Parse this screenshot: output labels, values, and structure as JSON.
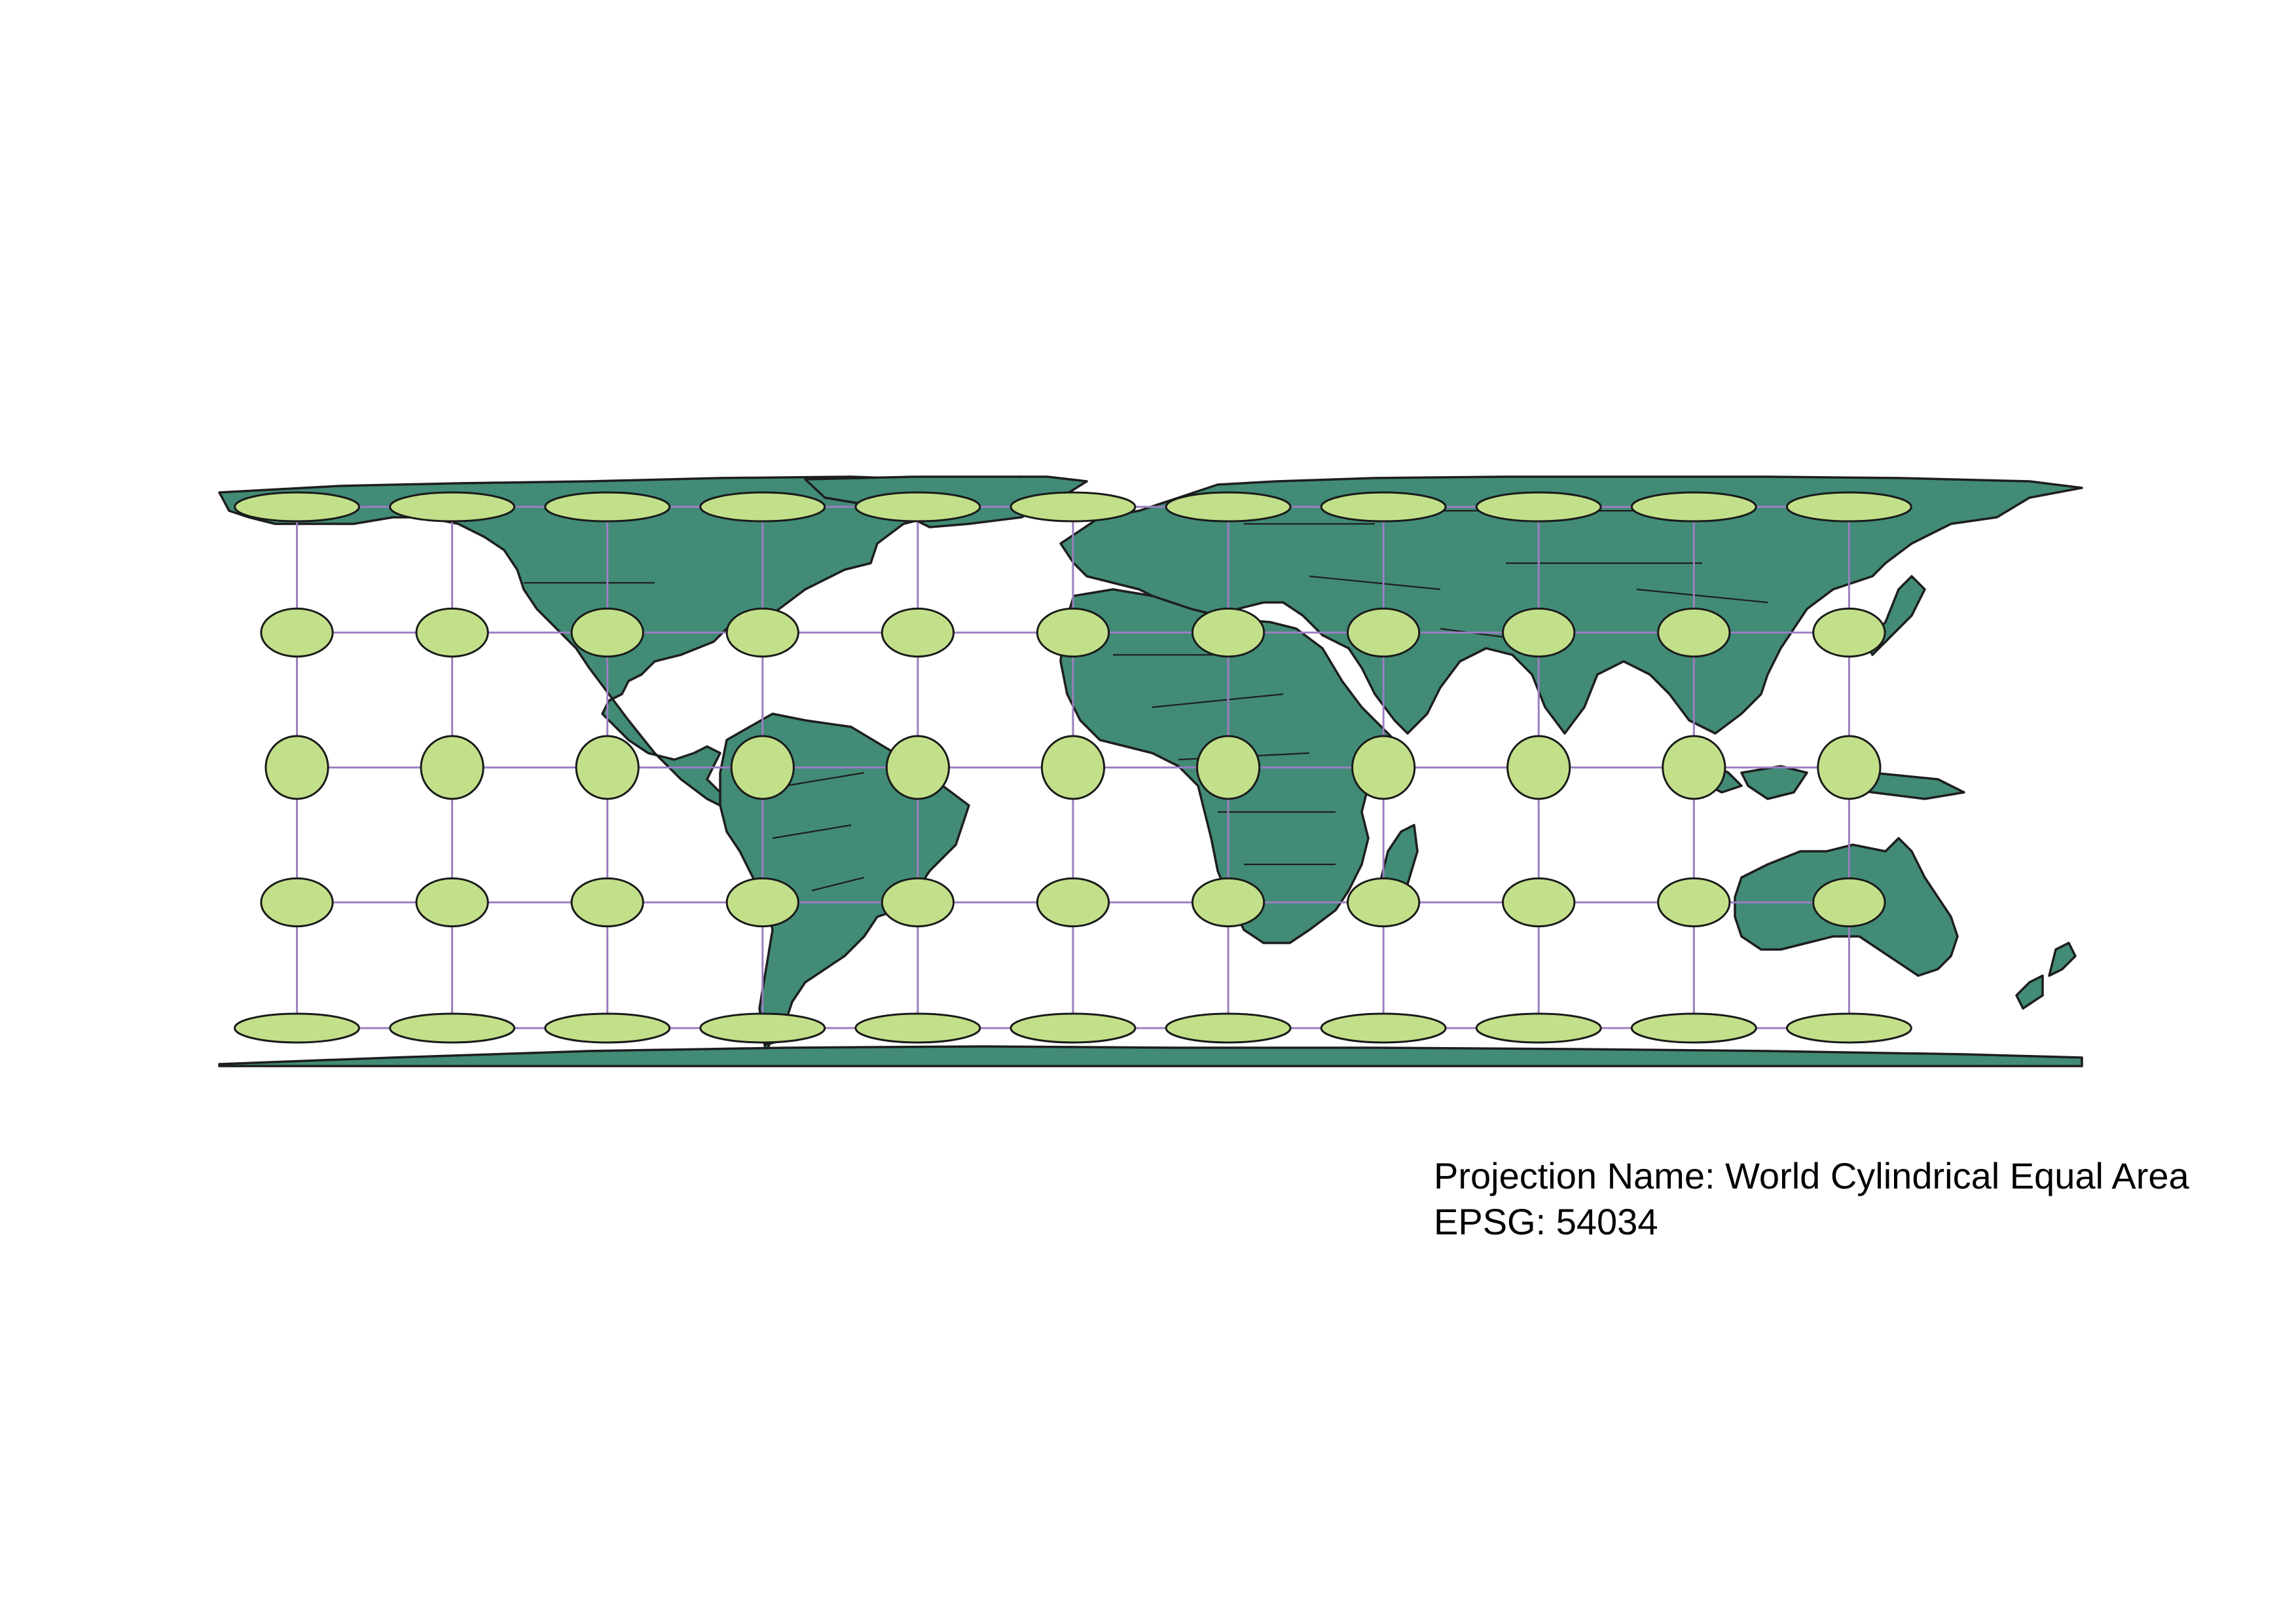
{
  "map": {
    "projection_label": "Projection Name:",
    "projection_name": "World Cylindrical Equal Area",
    "epsg_label": "EPSG:",
    "epsg_code": "54034",
    "colors": {
      "land": "#418b77",
      "outline": "#1e1e1e",
      "graticule": "#9b7fc0",
      "indicatrix": "#c2e08a"
    },
    "graticule": {
      "meridians_deg": [
        -165,
        -135,
        -105,
        -75,
        -45,
        -15,
        15,
        45,
        75,
        105,
        135
      ],
      "parallels_deg": [
        75,
        30,
        0,
        -30,
        -75
      ]
    }
  }
}
